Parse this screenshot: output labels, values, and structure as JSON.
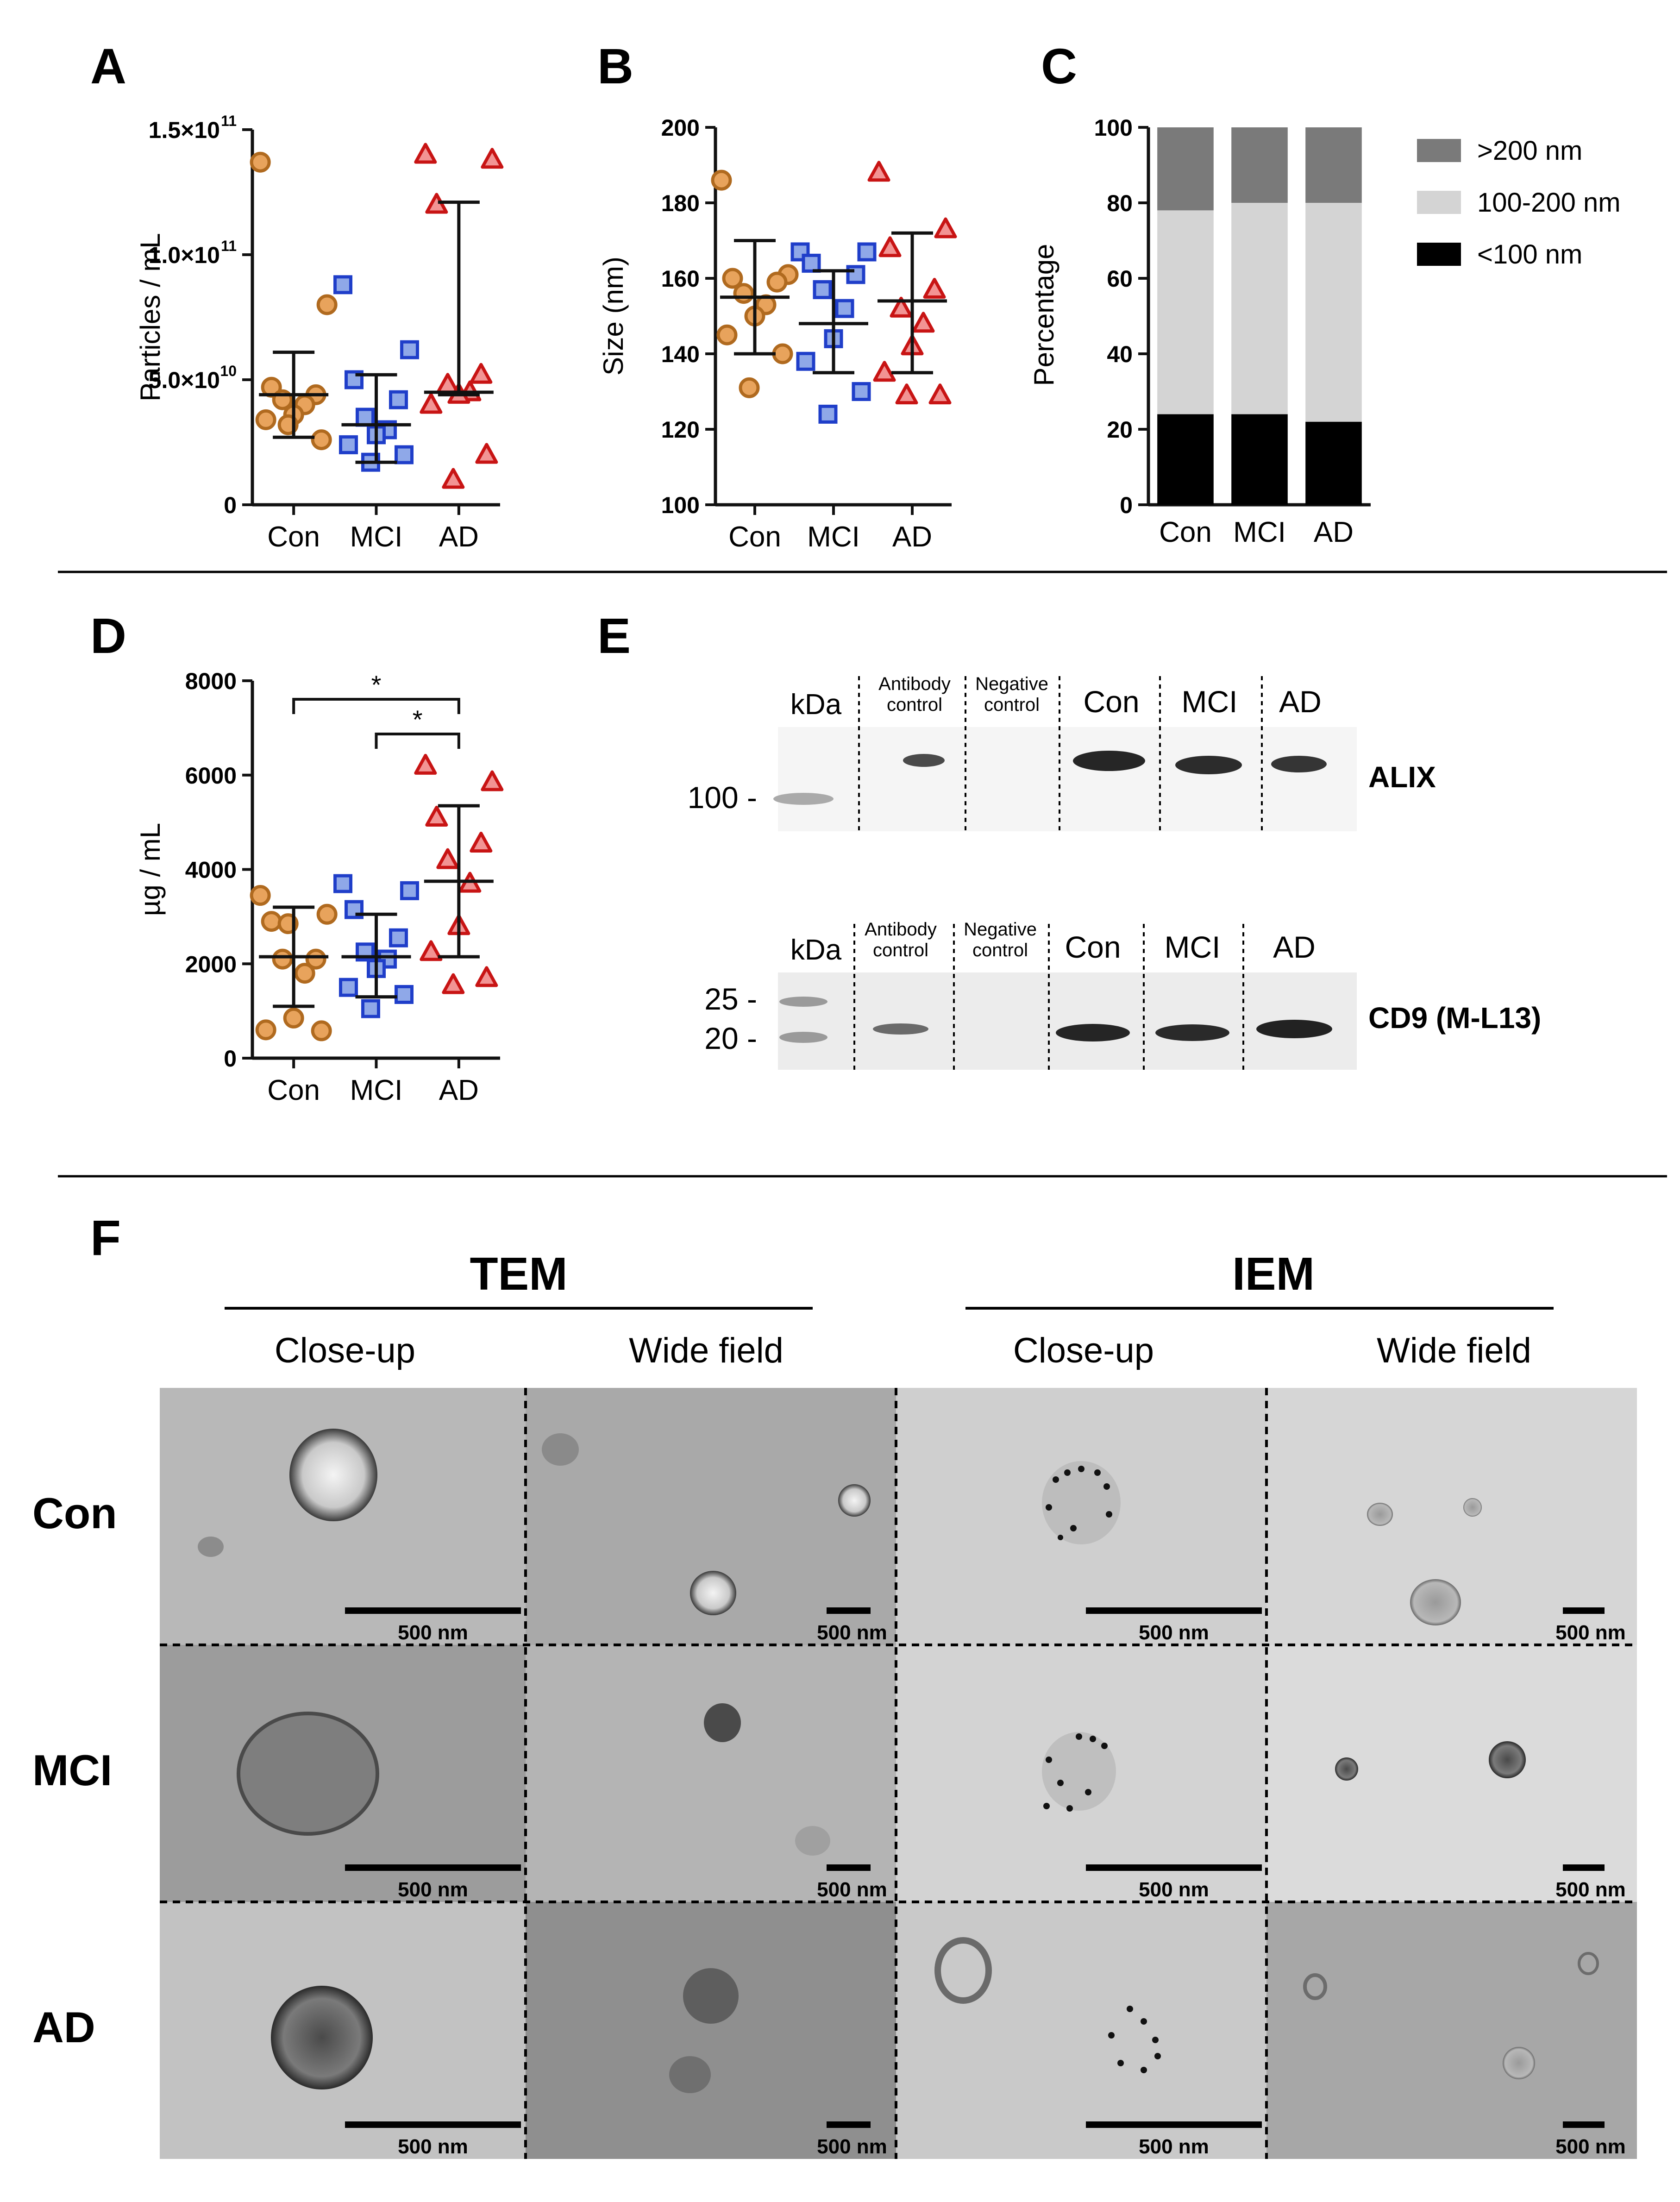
{
  "panel_letters": {
    "a": "A",
    "b": "B",
    "c": "C",
    "d": "D",
    "e": "E",
    "f": "F"
  },
  "chart_data": [
    {
      "type": "scatter",
      "panel": "A",
      "ylabel": "Particles / mL",
      "ylim": [
        0,
        150000000000
      ],
      "yticks": [
        {
          "value": 0,
          "label": "0"
        },
        {
          "value": 50000000000,
          "label": "5.0×10",
          "exp": "10"
        },
        {
          "value": 100000000000,
          "label": "1.0×10",
          "exp": "11"
        },
        {
          "value": 150000000000,
          "label": "1.5×10",
          "exp": "11"
        }
      ],
      "categories": [
        "Con",
        "MCI",
        "AD"
      ],
      "series": [
        {
          "values": [
            137000000000.0,
            80000000000.0,
            47000000000.0,
            44000000000.0,
            42000000000.0,
            40000000000.0,
            36000000000.0,
            34000000000.0,
            26000000000.0,
            32000000000.0
          ],
          "mean": 44000000000.0,
          "sd_low": 27000000000.0,
          "sd_high": 61000000000.0
        },
        {
          "values": [
            88000000000.0,
            62000000000.0,
            50000000000.0,
            42000000000.0,
            35000000000.0,
            30000000000.0,
            28000000000.0,
            24000000000.0,
            20000000000.0,
            17000000000.0
          ],
          "mean": 32000000000.0,
          "sd_low": 17000000000.0,
          "sd_high": 52000000000.0
        },
        {
          "values": [
            140000000000.0,
            138000000000.0,
            120000000000.0,
            52000000000.0,
            48000000000.0,
            45000000000.0,
            44000000000.0,
            40000000000.0,
            20000000000.0,
            10000000000.0
          ],
          "mean": 45000000000.0,
          "sd_low": 44000000000.0,
          "sd_high": 121000000000.0
        }
      ]
    },
    {
      "type": "scatter",
      "panel": "B",
      "ylabel": "Size (nm)",
      "ylim": [
        100,
        200
      ],
      "yticks": [
        {
          "value": 100,
          "label": "100"
        },
        {
          "value": 120,
          "label": "120"
        },
        {
          "value": 140,
          "label": "140"
        },
        {
          "value": 160,
          "label": "160"
        },
        {
          "value": 180,
          "label": "180"
        },
        {
          "value": 200,
          "label": "200"
        }
      ],
      "categories": [
        "Con",
        "MCI",
        "AD"
      ],
      "series": [
        {
          "values": [
            186,
            161,
            160,
            159,
            156,
            153,
            150,
            145,
            140,
            131
          ],
          "mean": 155,
          "sd_low": 140,
          "sd_high": 170
        },
        {
          "values": [
            167,
            167,
            164,
            161,
            157,
            152,
            144,
            138,
            130,
            124
          ],
          "mean": 148,
          "sd_low": 135,
          "sd_high": 162
        },
        {
          "values": [
            188,
            173,
            168,
            157,
            152,
            148,
            142,
            135,
            129,
            129
          ],
          "mean": 154,
          "sd_low": 135,
          "sd_high": 172
        }
      ]
    },
    {
      "type": "bar",
      "stacked": true,
      "panel": "C",
      "ylabel": "Percentage",
      "ylim": [
        0,
        100
      ],
      "yticks": [
        {
          "value": 0,
          "label": "0"
        },
        {
          "value": 20,
          "label": "20"
        },
        {
          "value": 40,
          "label": "40"
        },
        {
          "value": 60,
          "label": "60"
        },
        {
          "value": 80,
          "label": "80"
        },
        {
          "value": 100,
          "label": "100"
        }
      ],
      "categories": [
        "Con",
        "MCI",
        "AD"
      ],
      "series": [
        {
          "name": "<100 nm",
          "values": [
            24,
            24,
            22
          ],
          "color": "#000000"
        },
        {
          "name": "100-200 nm",
          "values": [
            54,
            56,
            58
          ],
          "color": "#d4d4d4"
        },
        {
          "name": ">200 nm",
          "values": [
            22,
            20,
            20
          ],
          "color": "#7a7a7a"
        }
      ],
      "legend": "right"
    },
    {
      "type": "scatter",
      "panel": "D",
      "ylabel": "µg / mL",
      "ylim": [
        0,
        8000
      ],
      "yticks": [
        {
          "value": 0,
          "label": "0"
        },
        {
          "value": 2000,
          "label": "2000"
        },
        {
          "value": 4000,
          "label": "4000"
        },
        {
          "value": 6000,
          "label": "6000"
        },
        {
          "value": 8000,
          "label": "8000"
        }
      ],
      "categories": [
        "Con",
        "MCI",
        "AD"
      ],
      "series": [
        {
          "values": [
            3450,
            3050,
            2900,
            2100,
            2100,
            1800,
            850,
            600,
            580,
            2850
          ],
          "mean": 2150,
          "sd_low": 1100,
          "sd_high": 3200
        },
        {
          "values": [
            3700,
            3550,
            3150,
            2550,
            2250,
            2100,
            1900,
            1500,
            1350,
            1050
          ],
          "mean": 2150,
          "sd_low": 1300,
          "sd_high": 3050
        },
        {
          "values": [
            6200,
            5850,
            5100,
            4550,
            4200,
            3700,
            2800,
            2250,
            1700,
            1550
          ],
          "mean": 3750,
          "sd_low": 2150,
          "sd_high": 5350
        }
      ],
      "significance": [
        {
          "from": "Con",
          "to": "AD",
          "label": "*"
        },
        {
          "from": "MCI",
          "to": "AD",
          "label": "*"
        }
      ]
    }
  ],
  "blots": {
    "lanes_top": {
      "kda": "kDa",
      "antibody_1": "Antibody",
      "antibody_2": "control",
      "negative_1": "Negative",
      "negative_2": "control",
      "con": "Con",
      "mci": "MCI",
      "ad": "AD"
    },
    "alix": {
      "label": "ALIX",
      "marker": "100 -"
    },
    "lanes_bottom": {
      "kda": "kDa",
      "antibody_1": "Antibody",
      "antibody_2": "control",
      "negative_1": "Negative",
      "negative_2": "control",
      "con": "Con",
      "mci": "MCI",
      "ad": "AD"
    },
    "cd9": {
      "label": "CD9 (M-L13)",
      "marker_25": "25 -",
      "marker_20": "20 -"
    }
  },
  "micrographs": {
    "tem": "TEM",
    "iem": "IEM",
    "close_up_1": "Close-up",
    "wide_field_1": "Wide field",
    "close_up_2": "Close-up",
    "wide_field_2": "Wide field",
    "rows": {
      "con": "Con",
      "mci": "MCI",
      "ad": "AD"
    },
    "scale": {
      "s11": "500 nm",
      "s12": "500 nm",
      "s13": "500 nm",
      "s14": "500 nm",
      "s21": "500 nm",
      "s22": "500 nm",
      "s23": "500 nm",
      "s24": "500 nm",
      "s31": "500 nm",
      "s32": "500 nm",
      "s33": "500 nm",
      "s34": "500 nm"
    }
  }
}
